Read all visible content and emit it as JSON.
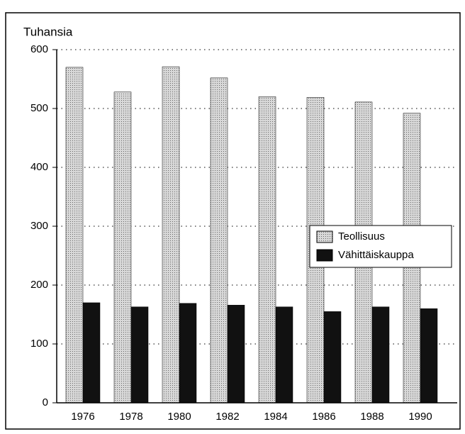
{
  "chart_data": {
    "type": "bar",
    "y_label": "Tuhansia",
    "categories": [
      "1976",
      "1978",
      "1980",
      "1982",
      "1984",
      "1986",
      "1988",
      "1990"
    ],
    "series": [
      {
        "name": "Teollisuus",
        "color": "#cfcfcf",
        "values": [
          570,
          528,
          571,
          552,
          520,
          519,
          511,
          492
        ]
      },
      {
        "name": "Vähittäiskauppa",
        "color": "#111111",
        "values": [
          170,
          163,
          169,
          166,
          163,
          155,
          163,
          160
        ]
      }
    ],
    "ylim": [
      0,
      600
    ],
    "yticks": [
      0,
      100,
      200,
      300,
      400,
      500,
      600
    ],
    "grid": true,
    "legend": "right"
  }
}
